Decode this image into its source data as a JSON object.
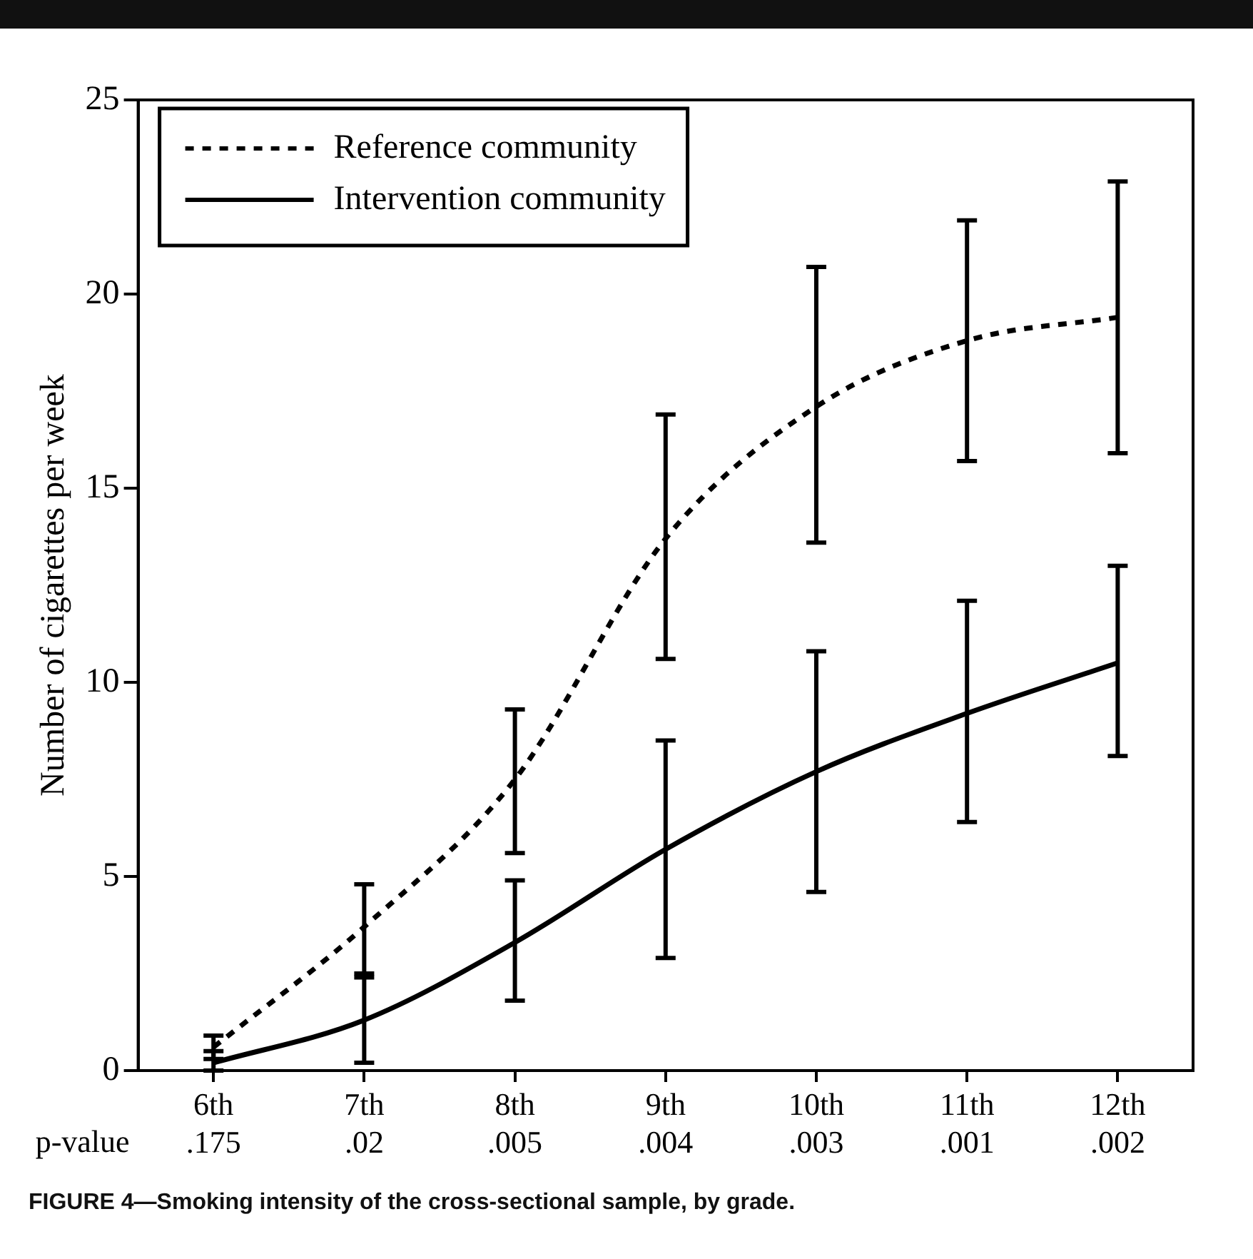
{
  "chart_data": {
    "type": "line",
    "title": "FIGURE 4—Smoking intensity of the cross-sectional sample, by grade.",
    "ylabel": "Number of cigarettes per week",
    "categories": [
      "6th\n.175",
      "7th\n.02",
      "8th\n.005",
      "9th\n.004",
      "10th\n.003",
      "11th\n.001",
      "12th\n.002"
    ],
    "annotations": [
      "p-value"
    ],
    "series": [
      {
        "name": "Reference community",
        "color": "#000000",
        "line_style": "dotted",
        "values": [
          0.6,
          3.7,
          7.5,
          13.7,
          17.1,
          18.8,
          19.4
        ],
        "errors": [
          [
            0.3,
            0.9
          ],
          [
            2.4,
            4.8
          ],
          [
            5.6,
            9.3
          ],
          [
            10.6,
            16.9
          ],
          [
            13.6,
            20.7
          ],
          [
            15.7,
            21.9
          ],
          [
            15.9,
            22.9
          ]
        ]
      },
      {
        "name": "Intervention community",
        "color": "#000000",
        "line_style": "solid",
        "values": [
          0.2,
          1.3,
          3.3,
          5.7,
          7.7,
          9.2,
          10.5
        ],
        "errors": [
          [
            0,
            0.5
          ],
          [
            0.2,
            2.5
          ],
          [
            1.8,
            4.9
          ],
          [
            2.9,
            8.5
          ],
          [
            4.6,
            10.8
          ],
          [
            6.4,
            12.1
          ],
          [
            8.1,
            13.0
          ]
        ]
      }
    ],
    "ylim": [
      0,
      25
    ],
    "yticks": [
      0,
      5,
      10,
      15,
      20,
      25
    ],
    "grid": false,
    "legend": "top left",
    "marker": "none"
  }
}
